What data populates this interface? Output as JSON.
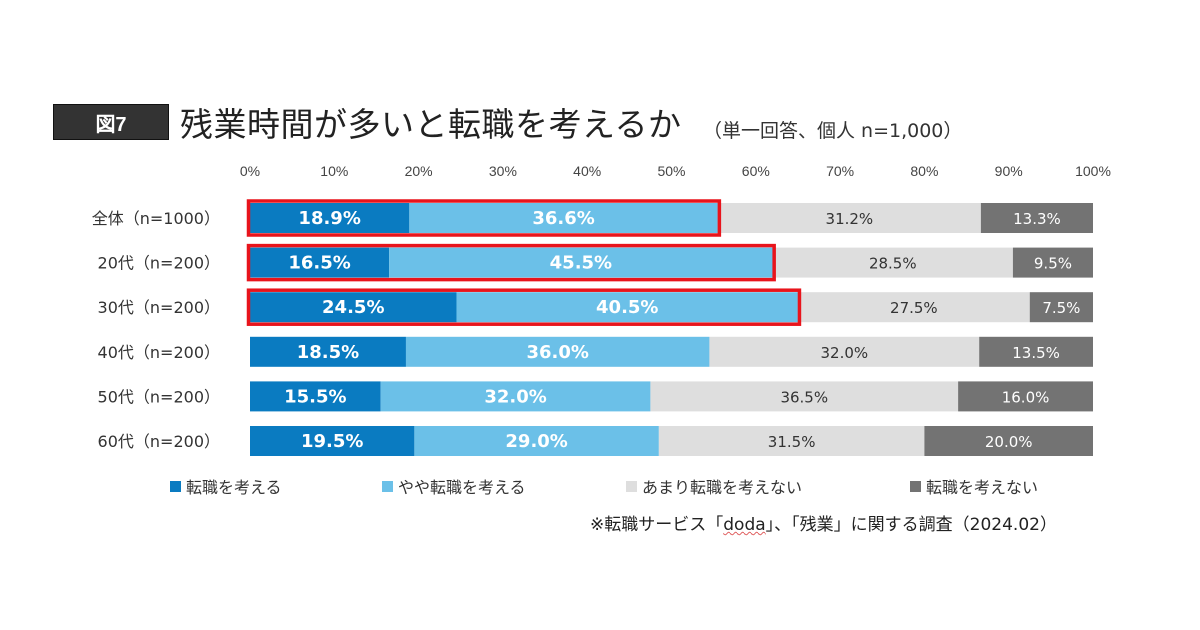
{
  "figure_badge": "図7",
  "title": "残業時間が多いと転職を考えるか",
  "subtitle": "（単一回答、個人 n=1,000）",
  "source": {
    "prefix": "※転職サービス「",
    "brand": "doda",
    "suffix": "」、「残業」に関する調査（2024.02）"
  },
  "colors": {
    "consider": "#0A7BC1",
    "somewhat_consider": "#6BC0E8",
    "not_really": "#DEDEDE",
    "not_consider": "#737373",
    "highlight": "#E8141C",
    "badge_bg": "#333333"
  },
  "chart_data": {
    "type": "bar",
    "orientation": "horizontal",
    "stacked": true,
    "title": "残業時間が多いと転職を考えるか",
    "subtitle": "（単一回答、個人 n=1,000）",
    "xlabel": "",
    "ylabel": "",
    "xlim": [
      0,
      100
    ],
    "x_ticks": [
      "0%",
      "10%",
      "20%",
      "30%",
      "40%",
      "50%",
      "60%",
      "70%",
      "80%",
      "90%",
      "100%"
    ],
    "x_axis_position": "top",
    "grid": false,
    "legend_position": "bottom",
    "categories": [
      "全体（n=1000）",
      "20代（n=200）",
      "30代（n=200）",
      "40代（n=200）",
      "50代（n=200）",
      "60代（n=200）"
    ],
    "series": [
      {
        "name": "転職を考える",
        "color": "#0A7BC1",
        "values": [
          18.9,
          16.5,
          24.5,
          18.5,
          15.5,
          19.5
        ]
      },
      {
        "name": "やや転職を考える",
        "color": "#6BC0E8",
        "values": [
          36.6,
          45.5,
          40.5,
          36.0,
          32.0,
          29.0
        ]
      },
      {
        "name": "あまり転職を考えない",
        "color": "#DEDEDE",
        "values": [
          31.2,
          28.5,
          27.5,
          32.0,
          36.5,
          31.5
        ]
      },
      {
        "name": "転職を考えない",
        "color": "#737373",
        "values": [
          13.3,
          9.5,
          7.5,
          13.5,
          16.0,
          20.0
        ]
      }
    ],
    "highlighted_categories": [
      "全体（n=1000）",
      "20代（n=200）",
      "30代（n=200）"
    ],
    "highlight_note": "red outline around the combined 転職を考える + やや転職を考える segments"
  }
}
